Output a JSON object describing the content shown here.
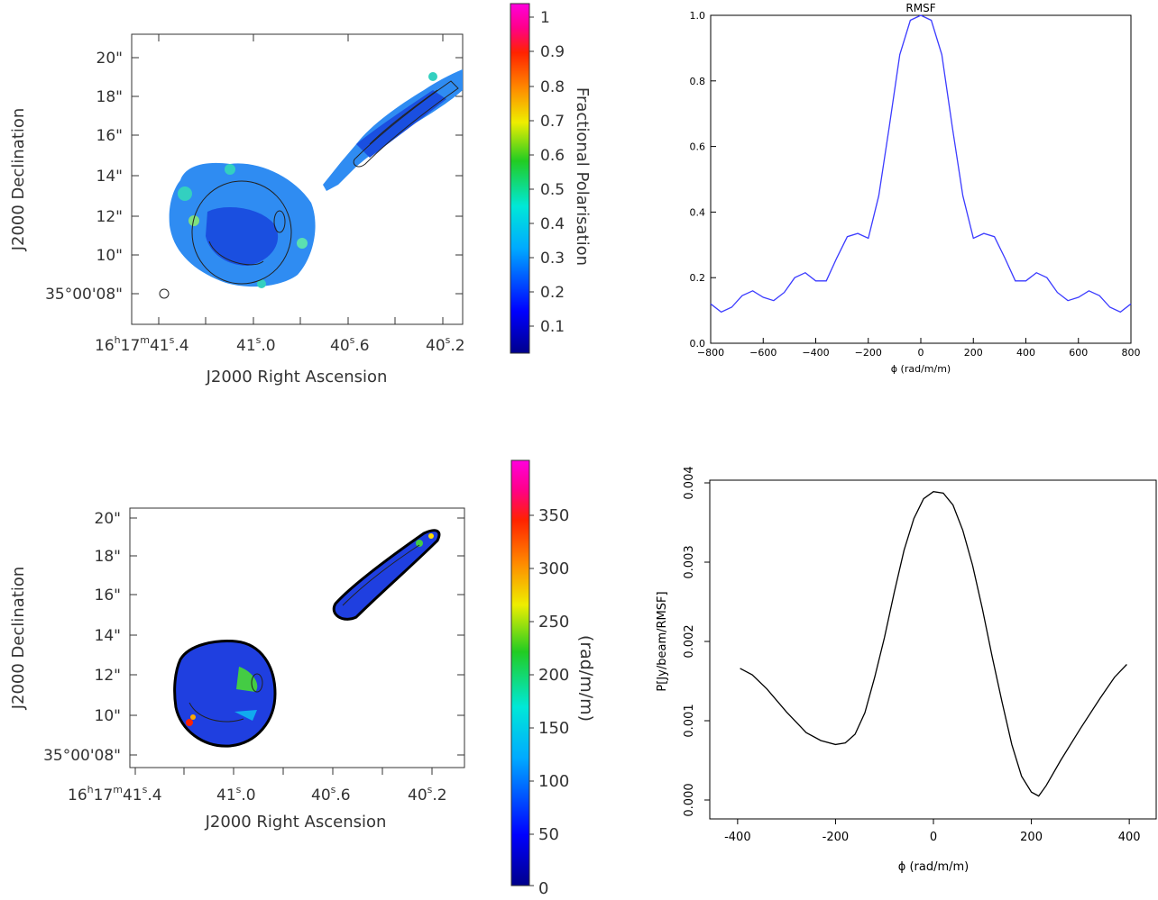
{
  "panels": {
    "polmap": {
      "ylabel": "J2000 Declination",
      "xlabel": "J2000 Right Ascension",
      "yticks": [
        "20\"",
        "18\"",
        "16\"",
        "14\"",
        "12\"",
        "10\"",
        "35°00'08\""
      ],
      "colorbar": {
        "label": "Fractional Polarisation",
        "ticks": [
          "1",
          "0.9",
          "0.8",
          "0.7",
          "0.6",
          "0.5",
          "0.4",
          "0.3",
          "0.2",
          "0.1"
        ]
      }
    },
    "rmmap": {
      "ylabel": "J2000 Declination",
      "xlabel": "J2000 Right Ascension",
      "yticks": [
        "20\"",
        "18\"",
        "16\"",
        "14\"",
        "12\"",
        "10\"",
        "35°00'08\""
      ],
      "colorbar": {
        "label": "(rad/m/m)",
        "ticks": [
          "350",
          "300",
          "250",
          "200",
          "150",
          "100",
          "50",
          "0"
        ]
      }
    }
  },
  "chart_data": [
    {
      "type": "line",
      "title": "RMSF",
      "xlabel": "ϕ (rad/m/m)",
      "ylabel": "",
      "xlim": [
        -800,
        800
      ],
      "ylim": [
        0.0,
        1.0
      ],
      "xticks": [
        "−800",
        "−600",
        "−400",
        "−200",
        "0",
        "200",
        "400",
        "600",
        "800"
      ],
      "yticks": [
        "0.0",
        "0.2",
        "0.4",
        "0.6",
        "0.8",
        "1.0"
      ],
      "color": "#3b3bff",
      "series": [
        {
          "x": [
            -800,
            -760,
            -720,
            -680,
            -640,
            -600,
            -560,
            -520,
            -480,
            -440,
            -400,
            -360,
            -320,
            -280,
            -240,
            -200,
            -160,
            -120,
            -80,
            -40,
            0,
            40,
            80,
            120,
            160,
            200,
            240,
            280,
            320,
            360,
            400,
            440,
            480,
            520,
            560,
            600,
            640,
            680,
            720,
            760,
            800
          ],
          "y": [
            0.12,
            0.095,
            0.11,
            0.145,
            0.16,
            0.14,
            0.13,
            0.155,
            0.2,
            0.215,
            0.19,
            0.19,
            0.26,
            0.325,
            0.335,
            0.32,
            0.45,
            0.66,
            0.88,
            0.985,
            1.0,
            0.985,
            0.88,
            0.66,
            0.45,
            0.32,
            0.335,
            0.325,
            0.26,
            0.19,
            0.19,
            0.215,
            0.2,
            0.155,
            0.13,
            0.14,
            0.16,
            0.145,
            0.11,
            0.095,
            0.12
          ]
        }
      ]
    },
    {
      "type": "line",
      "title": "",
      "xlabel": "ϕ (rad/m/m)",
      "ylabel": "P[Jy/beam/RMSF]",
      "xlim": [
        -420,
        420
      ],
      "ylim": [
        0.0,
        0.004
      ],
      "xticks": [
        "-400",
        "-200",
        "0",
        "200",
        "400"
      ],
      "yticks": [
        "0.000",
        "0.001",
        "0.002",
        "0.003",
        "0.004"
      ],
      "color": "#000000",
      "series": [
        {
          "x": [
            -395,
            -370,
            -340,
            -300,
            -260,
            -230,
            -200,
            -180,
            -160,
            -140,
            -120,
            -100,
            -80,
            -60,
            -40,
            -20,
            0,
            20,
            40,
            60,
            80,
            100,
            120,
            140,
            160,
            180,
            200,
            215,
            230,
            260,
            300,
            340,
            370,
            395
          ],
          "y": [
            0.00166,
            0.00158,
            0.0014,
            0.00111,
            0.00085,
            0.00075,
            0.0007,
            0.00072,
            0.00083,
            0.0011,
            0.00155,
            0.00205,
            0.00262,
            0.00315,
            0.00355,
            0.0038,
            0.00389,
            0.00387,
            0.00372,
            0.0034,
            0.00296,
            0.00241,
            0.00181,
            0.00124,
            0.0007,
            0.0003,
            0.0001,
            5e-05,
            0.00018,
            0.0005,
            0.0009,
            0.00128,
            0.00155,
            0.00171
          ]
        }
      ]
    }
  ]
}
